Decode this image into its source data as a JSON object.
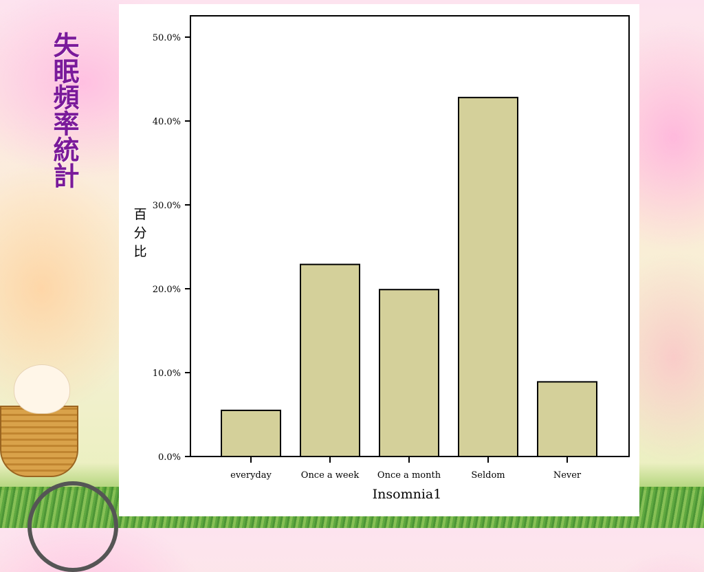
{
  "title": "失眠頻率統計",
  "chart_data": {
    "type": "bar",
    "categories": [
      "everyday",
      "Once a week",
      "Once a month",
      "Seldom",
      "Never"
    ],
    "values": [
      5.5,
      22.9,
      19.9,
      42.8,
      8.9
    ],
    "xlabel": "Insomnia1",
    "ylabel": "百分比",
    "ylim": [
      0,
      50
    ],
    "yticks": [
      "0.0%",
      "10.0%",
      "20.0%",
      "30.0%",
      "40.0%",
      "50.0%"
    ],
    "grid": false,
    "colors": {
      "bar_fill": "#d4d09a",
      "bar_stroke": "#000000"
    }
  }
}
